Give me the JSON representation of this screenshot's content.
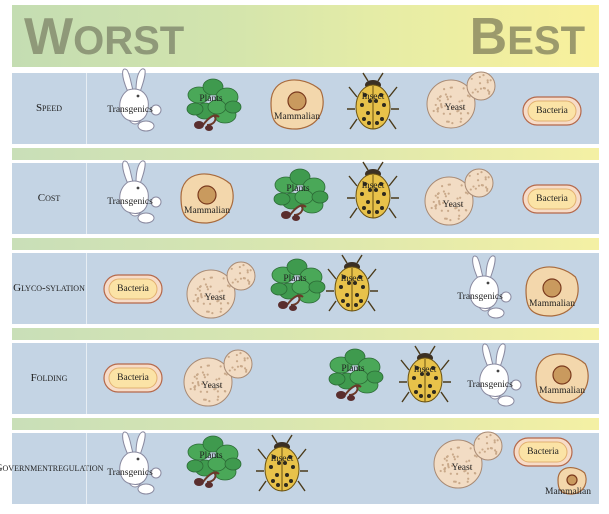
{
  "header": {
    "worst_initial": "W",
    "worst_rest": "ORST",
    "best_initial": "B",
    "best_rest": "EST"
  },
  "rows": [
    {
      "label_lines": [
        "Speed"
      ],
      "items": [
        "Transgenics",
        "Plants",
        "Mammalian",
        "Insect",
        "Yeast",
        "Bacteria"
      ]
    },
    {
      "label_lines": [
        "Cost"
      ],
      "items": [
        "Transgenics",
        "Mammalian",
        "Plants",
        "Insect",
        "Yeast",
        "Bacteria"
      ]
    },
    {
      "label_lines": [
        "Glyco-",
        "sylation"
      ],
      "items": [
        "Bacteria",
        "Yeast",
        "Plants",
        "Insect",
        "Transgenics",
        "Mammalian"
      ]
    },
    {
      "label_lines": [
        "Folding"
      ],
      "items": [
        "Bacteria",
        "Yeast",
        "Plants",
        "Insect",
        "Transgenics",
        "Mammalian"
      ]
    },
    {
      "label_lines": [
        "Government",
        "regulation"
      ],
      "items": [
        "Transgenics",
        "Plants",
        "Insect",
        "Yeast",
        "Bacteria",
        "Mammalian"
      ]
    }
  ],
  "colors": {
    "row_bg": "#c4d4e4",
    "cell_fill": "#f3d7ac",
    "bacteria_fill": "#fbe3a6",
    "leaf": "#3f9a4e",
    "beetle": "#e8c24a"
  }
}
